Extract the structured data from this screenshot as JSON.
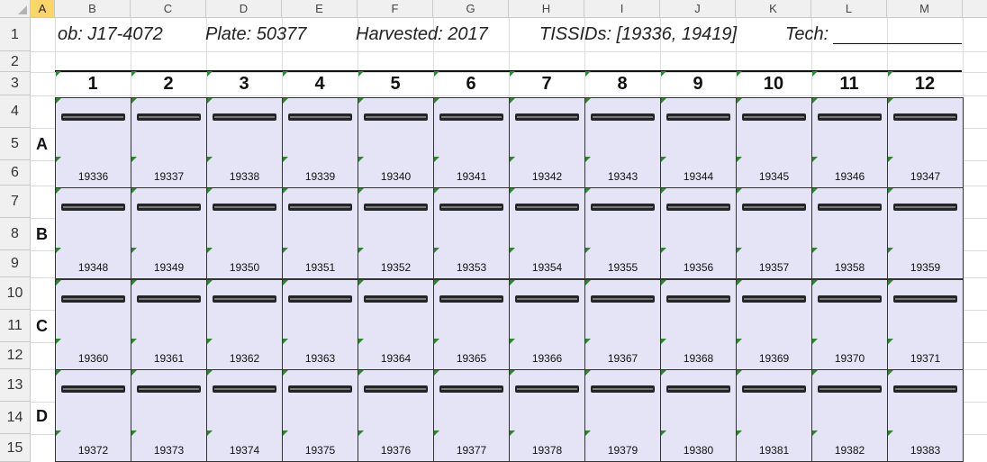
{
  "columns": [
    "A",
    "B",
    "C",
    "D",
    "E",
    "F",
    "G",
    "H",
    "I",
    "J",
    "K",
    "L",
    "M"
  ],
  "selected_column": "A",
  "rows": [
    "1",
    "2",
    "3",
    "4",
    "5",
    "6",
    "7",
    "8",
    "9",
    "10",
    "11",
    "12",
    "13",
    "14",
    "15"
  ],
  "header": {
    "job": "ob: J17-4072",
    "plate": "Plate: 50377",
    "harvested": "Harvested: 2017",
    "tissids": "TISSIDs: [19336, 19419]",
    "tech": "Tech:"
  },
  "plate_columns": [
    "1",
    "2",
    "3",
    "4",
    "5",
    "6",
    "7",
    "8",
    "9",
    "10",
    "11",
    "12"
  ],
  "plate_rows": [
    "A",
    "B",
    "C",
    "D"
  ],
  "tissue_ids": [
    [
      "19336",
      "19337",
      "19338",
      "19339",
      "19340",
      "19341",
      "19342",
      "19343",
      "19344",
      "19345",
      "19346",
      "19347"
    ],
    [
      "19348",
      "19349",
      "19350",
      "19351",
      "19352",
      "19353",
      "19354",
      "19355",
      "19356",
      "19357",
      "19358",
      "19359"
    ],
    [
      "19360",
      "19361",
      "19362",
      "19363",
      "19364",
      "19365",
      "19366",
      "19367",
      "19368",
      "19369",
      "19370",
      "19371"
    ],
    [
      "19372",
      "19373",
      "19374",
      "19375",
      "19376",
      "19377",
      "19378",
      "19379",
      "19380",
      "19381",
      "19382",
      "19383"
    ]
  ],
  "colors": {
    "well_fill": "#e4e4f6",
    "selected_header": "#fbd56a",
    "comment_marker": "#2a8a2a"
  }
}
